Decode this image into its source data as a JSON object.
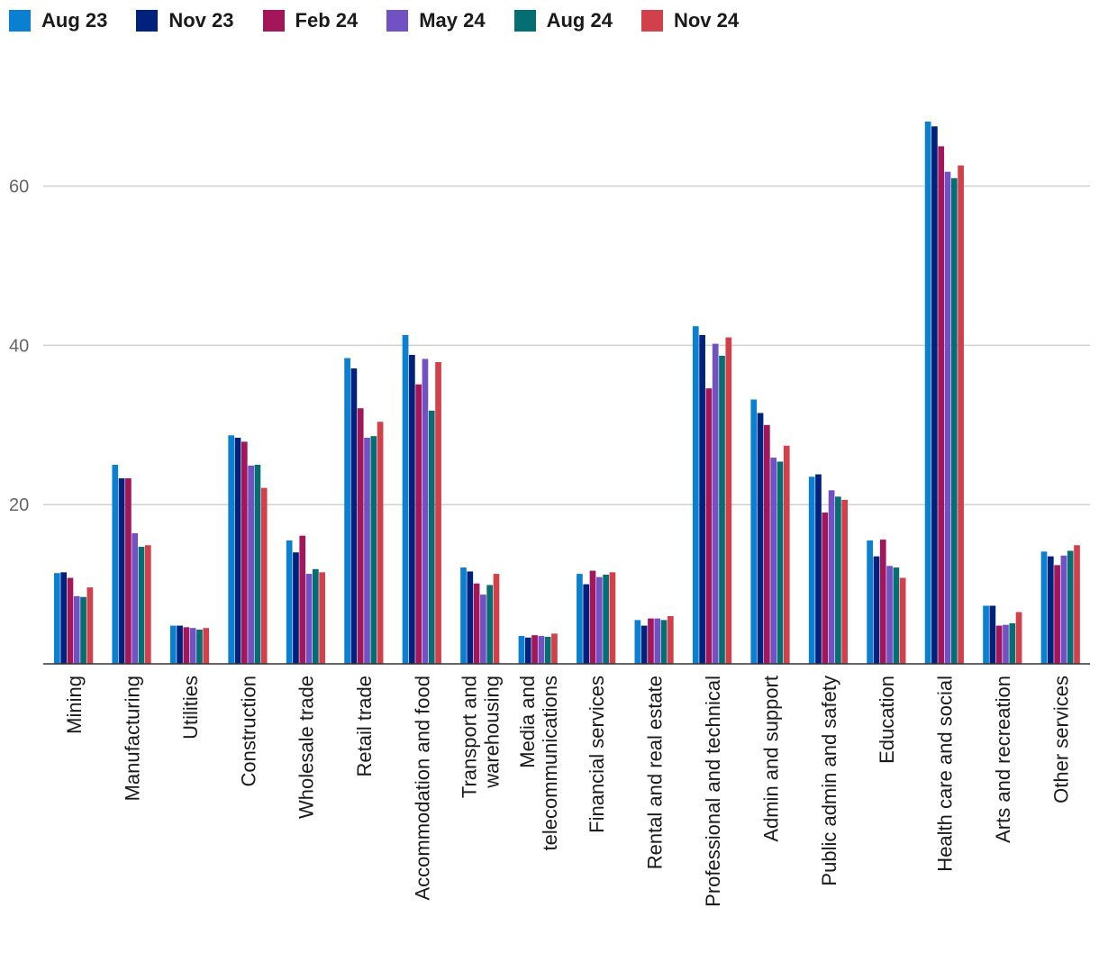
{
  "chart_data": {
    "type": "bar",
    "title": "",
    "xlabel": "",
    "ylabel": "",
    "ylim": [
      0,
      70
    ],
    "yticks": [
      20,
      40,
      60
    ],
    "grid": true,
    "legend_position": "top-left",
    "categories": [
      [
        "Mining"
      ],
      [
        "Manufacturing"
      ],
      [
        "Utilities"
      ],
      [
        "Construction"
      ],
      [
        "Wholesale trade"
      ],
      [
        "Retail trade"
      ],
      [
        "Accommodation and food"
      ],
      [
        "Transport and",
        "warehousing"
      ],
      [
        "Media and",
        "telecommunications"
      ],
      [
        "Financial services"
      ],
      [
        "Rental and real estate"
      ],
      [
        "Professional and technical"
      ],
      [
        "Admin and support"
      ],
      [
        "Public admin and safety"
      ],
      [
        "Education"
      ],
      [
        "Health care and social"
      ],
      [
        "Arts and recreation"
      ],
      [
        "Other services"
      ]
    ],
    "series": [
      {
        "name": "Aug 23",
        "color": "#0b7fd0",
        "values": [
          11.4,
          25.0,
          4.8,
          28.7,
          15.5,
          38.4,
          41.3,
          12.1,
          3.5,
          11.3,
          5.5,
          42.4,
          33.2,
          23.5,
          15.5,
          68.1,
          7.3,
          14.1
        ]
      },
      {
        "name": "Nov 23",
        "color": "#00227d",
        "values": [
          11.5,
          23.3,
          4.8,
          28.4,
          14.0,
          37.1,
          38.8,
          11.6,
          3.3,
          10.0,
          4.8,
          41.3,
          31.5,
          23.8,
          13.5,
          67.5,
          7.3,
          13.5
        ]
      },
      {
        "name": "Feb 24",
        "color": "#a3175a",
        "values": [
          10.8,
          23.3,
          4.6,
          27.9,
          16.1,
          32.1,
          35.1,
          10.1,
          3.6,
          11.7,
          5.7,
          34.6,
          30.0,
          19.0,
          15.6,
          65.0,
          4.8,
          12.4
        ]
      },
      {
        "name": "May 24",
        "color": "#7251c4",
        "values": [
          8.5,
          16.4,
          4.5,
          24.9,
          11.3,
          28.4,
          38.3,
          8.7,
          3.5,
          10.9,
          5.7,
          40.2,
          25.9,
          21.8,
          12.3,
          61.8,
          4.9,
          13.6
        ]
      },
      {
        "name": "Aug 24",
        "color": "#046e73",
        "values": [
          8.4,
          14.7,
          4.3,
          25.0,
          11.9,
          28.6,
          31.8,
          9.9,
          3.4,
          11.2,
          5.5,
          38.7,
          25.4,
          21.0,
          12.1,
          61.0,
          5.1,
          14.2
        ]
      },
      {
        "name": "Nov 24",
        "color": "#d2404c",
        "values": [
          9.6,
          14.9,
          4.5,
          22.1,
          11.5,
          30.4,
          37.9,
          11.3,
          3.8,
          11.5,
          6.0,
          41.0,
          27.4,
          20.6,
          10.8,
          62.6,
          6.5,
          14.9
        ]
      }
    ]
  }
}
